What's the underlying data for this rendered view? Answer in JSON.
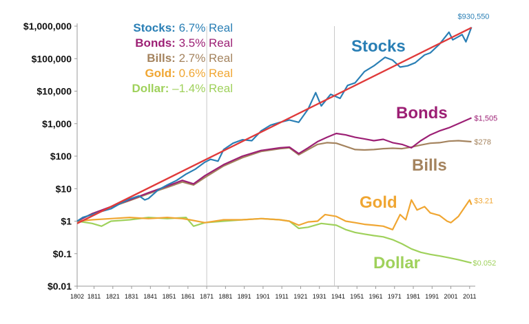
{
  "chart_data": {
    "type": "line",
    "scale": "log",
    "ylim": [
      0.01,
      1000000
    ],
    "xlim": [
      1802,
      2014
    ],
    "y_ticks": [
      {
        "value": 1000000,
        "label": "$1,000,000"
      },
      {
        "value": 100000,
        "label": "$100,000"
      },
      {
        "value": 10000,
        "label": "$10,000"
      },
      {
        "value": 1000,
        "label": "$1,000"
      },
      {
        "value": 100,
        "label": "$100"
      },
      {
        "value": 10,
        "label": "$10"
      },
      {
        "value": 1,
        "label": "$1"
      },
      {
        "value": 0.1,
        "label": "$0.1"
      },
      {
        "value": 0.01,
        "label": "$0.01"
      }
    ],
    "x_ticks": [
      "1802",
      "1811",
      "1821",
      "1831",
      "1841",
      "1851",
      "1861",
      "1871",
      "1881",
      "1891",
      "1901",
      "1911",
      "1921",
      "1931",
      "1941",
      "1951",
      "1961",
      "1971",
      "1981",
      "1991",
      "2001",
      "2011"
    ],
    "vertical_lines": [
      1871,
      1939
    ],
    "legend": [
      {
        "name": "Stocks:",
        "value": "6.7% Real",
        "color": "#2a7fb5"
      },
      {
        "name": "Bonds:",
        "value": "3.5% Real",
        "color": "#9c1f74"
      },
      {
        "name": "Bills:",
        "value": "2.7% Real",
        "color": "#a4835e"
      },
      {
        "name": "Gold:",
        "value": "0.6% Real",
        "color": "#f0a632"
      },
      {
        "name": "Dollar:",
        "value": "–1.4% Real",
        "color": "#9fd15b"
      }
    ],
    "series": [
      {
        "name": "Stocks",
        "color": "#2a7fb5",
        "end_label": "$930,550",
        "points": [
          [
            1802,
            1
          ],
          [
            1805,
            1.3
          ],
          [
            1810,
            1.6
          ],
          [
            1815,
            2.0
          ],
          [
            1820,
            2.4
          ],
          [
            1825,
            3.5
          ],
          [
            1830,
            4.8
          ],
          [
            1835,
            6.0
          ],
          [
            1838,
            4.5
          ],
          [
            1840,
            5.0
          ],
          [
            1845,
            9
          ],
          [
            1850,
            13
          ],
          [
            1855,
            18
          ],
          [
            1860,
            28
          ],
          [
            1865,
            40
          ],
          [
            1870,
            65
          ],
          [
            1873,
            80
          ],
          [
            1877,
            70
          ],
          [
            1880,
            160
          ],
          [
            1885,
            250
          ],
          [
            1890,
            320
          ],
          [
            1895,
            300
          ],
          [
            1900,
            600
          ],
          [
            1905,
            900
          ],
          [
            1910,
            1100
          ],
          [
            1915,
            1300
          ],
          [
            1920,
            1100
          ],
          [
            1925,
            2800
          ],
          [
            1929,
            9000
          ],
          [
            1932,
            3500
          ],
          [
            1937,
            8000
          ],
          [
            1942,
            6000
          ],
          [
            1946,
            15000
          ],
          [
            1950,
            18000
          ],
          [
            1955,
            40000
          ],
          [
            1960,
            60000
          ],
          [
            1966,
            110000
          ],
          [
            1970,
            90000
          ],
          [
            1974,
            55000
          ],
          [
            1978,
            60000
          ],
          [
            1982,
            75000
          ],
          [
            1987,
            130000
          ],
          [
            1990,
            150000
          ],
          [
            1995,
            280000
          ],
          [
            2000,
            650000
          ],
          [
            2002,
            380000
          ],
          [
            2007,
            550000
          ],
          [
            2009,
            330000
          ],
          [
            2012,
            930550
          ]
        ]
      },
      {
        "name": "Bonds",
        "color": "#9c1f74",
        "end_label": "$1,505",
        "points": [
          [
            1802,
            1
          ],
          [
            1810,
            1.7
          ],
          [
            1820,
            2.8
          ],
          [
            1830,
            4.5
          ],
          [
            1840,
            7.5
          ],
          [
            1850,
            12
          ],
          [
            1858,
            18
          ],
          [
            1864,
            14
          ],
          [
            1870,
            25
          ],
          [
            1880,
            55
          ],
          [
            1890,
            100
          ],
          [
            1900,
            150
          ],
          [
            1910,
            180
          ],
          [
            1915,
            190
          ],
          [
            1920,
            120
          ],
          [
            1925,
            180
          ],
          [
            1930,
            280
          ],
          [
            1935,
            380
          ],
          [
            1940,
            500
          ],
          [
            1945,
            450
          ],
          [
            1950,
            380
          ],
          [
            1955,
            340
          ],
          [
            1960,
            300
          ],
          [
            1965,
            330
          ],
          [
            1970,
            260
          ],
          [
            1975,
            230
          ],
          [
            1980,
            180
          ],
          [
            1985,
            300
          ],
          [
            1990,
            450
          ],
          [
            1995,
            600
          ],
          [
            2000,
            750
          ],
          [
            2005,
            1000
          ],
          [
            2012,
            1505
          ]
        ]
      },
      {
        "name": "Bills",
        "color": "#a4835e",
        "end_label": "$278",
        "points": [
          [
            1802,
            1
          ],
          [
            1810,
            1.7
          ],
          [
            1820,
            2.7
          ],
          [
            1830,
            4.3
          ],
          [
            1840,
            7
          ],
          [
            1850,
            11
          ],
          [
            1858,
            16
          ],
          [
            1864,
            13
          ],
          [
            1870,
            22
          ],
          [
            1880,
            50
          ],
          [
            1890,
            90
          ],
          [
            1900,
            140
          ],
          [
            1910,
            170
          ],
          [
            1915,
            180
          ],
          [
            1920,
            110
          ],
          [
            1925,
            160
          ],
          [
            1930,
            230
          ],
          [
            1935,
            260
          ],
          [
            1940,
            250
          ],
          [
            1945,
            200
          ],
          [
            1950,
            160
          ],
          [
            1955,
            155
          ],
          [
            1960,
            160
          ],
          [
            1965,
            170
          ],
          [
            1970,
            175
          ],
          [
            1975,
            170
          ],
          [
            1980,
            190
          ],
          [
            1985,
            220
          ],
          [
            1990,
            250
          ],
          [
            1995,
            260
          ],
          [
            2000,
            290
          ],
          [
            2005,
            300
          ],
          [
            2012,
            278
          ]
        ]
      },
      {
        "name": "Gold",
        "color": "#f0a632",
        "end_label": "$3.21",
        "points": [
          [
            1802,
            1
          ],
          [
            1810,
            1.1
          ],
          [
            1820,
            1.2
          ],
          [
            1830,
            1.3
          ],
          [
            1840,
            1.2
          ],
          [
            1850,
            1.3
          ],
          [
            1858,
            1.2
          ],
          [
            1862,
            1.1
          ],
          [
            1870,
            0.9
          ],
          [
            1880,
            1.1
          ],
          [
            1890,
            1.1
          ],
          [
            1900,
            1.2
          ],
          [
            1910,
            1.1
          ],
          [
            1915,
            1.0
          ],
          [
            1920,
            0.75
          ],
          [
            1925,
            0.95
          ],
          [
            1930,
            1.0
          ],
          [
            1934,
            1.6
          ],
          [
            1940,
            1.4
          ],
          [
            1945,
            1.0
          ],
          [
            1950,
            0.9
          ],
          [
            1955,
            0.8
          ],
          [
            1960,
            0.75
          ],
          [
            1965,
            0.7
          ],
          [
            1970,
            0.55
          ],
          [
            1974,
            1.6
          ],
          [
            1977,
            1.1
          ],
          [
            1980,
            4.5
          ],
          [
            1983,
            2.2
          ],
          [
            1987,
            2.8
          ],
          [
            1990,
            1.8
          ],
          [
            1995,
            1.5
          ],
          [
            1999,
            1.0
          ],
          [
            2001,
            0.9
          ],
          [
            2005,
            1.4
          ],
          [
            2008,
            2.5
          ],
          [
            2011,
            4.5
          ],
          [
            2012,
            3.21
          ]
        ]
      },
      {
        "name": "Dollar",
        "color": "#9fd15b",
        "end_label": "$0.052",
        "points": [
          [
            1802,
            1
          ],
          [
            1810,
            0.85
          ],
          [
            1815,
            0.7
          ],
          [
            1820,
            1.0
          ],
          [
            1830,
            1.1
          ],
          [
            1840,
            1.3
          ],
          [
            1850,
            1.2
          ],
          [
            1860,
            1.3
          ],
          [
            1864,
            0.7
          ],
          [
            1870,
            0.9
          ],
          [
            1880,
            1.0
          ],
          [
            1890,
            1.1
          ],
          [
            1900,
            1.2
          ],
          [
            1910,
            1.1
          ],
          [
            1915,
            1.0
          ],
          [
            1920,
            0.6
          ],
          [
            1925,
            0.65
          ],
          [
            1932,
            0.85
          ],
          [
            1940,
            0.75
          ],
          [
            1945,
            0.55
          ],
          [
            1950,
            0.45
          ],
          [
            1955,
            0.4
          ],
          [
            1960,
            0.36
          ],
          [
            1965,
            0.33
          ],
          [
            1970,
            0.27
          ],
          [
            1975,
            0.2
          ],
          [
            1980,
            0.14
          ],
          [
            1985,
            0.11
          ],
          [
            1990,
            0.095
          ],
          [
            1995,
            0.085
          ],
          [
            2000,
            0.075
          ],
          [
            2005,
            0.065
          ],
          [
            2012,
            0.052
          ]
        ]
      }
    ],
    "series_labels": [
      {
        "name": "Stocks",
        "color": "#2a7fb5"
      },
      {
        "name": "Bonds",
        "color": "#9c1f74"
      },
      {
        "name": "Bills",
        "color": "#a4835e"
      },
      {
        "name": "Gold",
        "color": "#f0a632"
      },
      {
        "name": "Dollar",
        "color": "#9fd15b"
      }
    ],
    "trend_line": {
      "color": "#e03a3a",
      "start": [
        1802,
        0.85
      ],
      "end": [
        2012,
        900000
      ]
    }
  }
}
